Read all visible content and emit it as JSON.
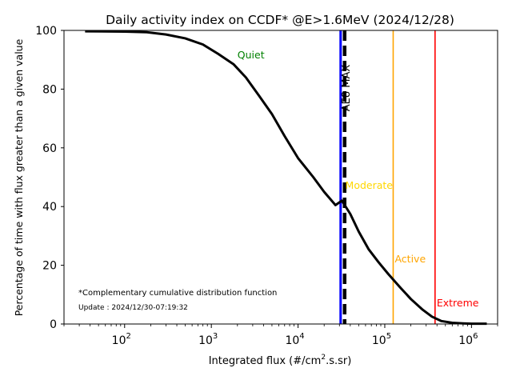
{
  "chart_data": {
    "type": "line",
    "title": "Daily activity index on CCDF* @E>1.6MeV (2024/12/28)",
    "xlabel_main": "Integrated flux (#/cm",
    "xlabel_sup": "2",
    "xlabel_tail": ".s.sr)",
    "ylabel": "Percentage of time with flux greater than a given value",
    "x_scale": "log",
    "xlim": [
      20,
      2000000
    ],
    "ylim": [
      0,
      100
    ],
    "grid": false,
    "x_ticks": [
      {
        "value": 100,
        "base": "10",
        "exp": "2"
      },
      {
        "value": 1000,
        "base": "10",
        "exp": "3"
      },
      {
        "value": 10000,
        "base": "10",
        "exp": "4"
      },
      {
        "value": 100000,
        "base": "10",
        "exp": "5"
      },
      {
        "value": 1000000,
        "base": "10",
        "exp": "6"
      }
    ],
    "y_ticks": [
      0,
      20,
      40,
      60,
      80,
      100
    ],
    "series": [
      {
        "color": "#000000",
        "x": [
          35,
          100,
          180,
          300,
          500,
          800,
          1200,
          1800,
          2500,
          3500,
          5000,
          7000,
          10000,
          15000,
          20000,
          27000,
          32000,
          40000,
          50000,
          65000,
          85000,
          110000,
          150000,
          200000,
          270000,
          350000,
          450000,
          600000,
          800000,
          1000000,
          1500000
        ],
        "y": [
          99.7,
          99.6,
          99.4,
          98.6,
          97.3,
          95.2,
          92.0,
          88.5,
          84.0,
          78.0,
          71.5,
          64.0,
          56.5,
          50.0,
          45.0,
          40.5,
          42.0,
          37.5,
          31.5,
          25.5,
          21.0,
          17.0,
          12.5,
          8.5,
          5.0,
          2.5,
          1.0,
          0.4,
          0.2,
          0.1,
          0.1
        ]
      }
    ],
    "reference_lines": [
      {
        "label": "AE8 MAX",
        "x": 33000,
        "style": "blue-black-dashed",
        "color": "#0000ff"
      }
    ],
    "thresholds": [
      {
        "label": "Active",
        "x": 125000,
        "color": "#ffa500",
        "label_y": 21
      },
      {
        "label": "Extreme",
        "x": 380000,
        "color": "#ff0000",
        "label_y": 6
      }
    ],
    "zone_labels": [
      {
        "label": "Quiet",
        "x": 2000,
        "y": 90.5,
        "color": "#008000"
      },
      {
        "label": "Moderate",
        "x": 35000,
        "y": 46,
        "color": "#ffd700"
      }
    ],
    "annotations": {
      "footnote": "*Complementary cumulative distribution function",
      "update": "Update : 2024/12/30-07:19:32"
    }
  }
}
